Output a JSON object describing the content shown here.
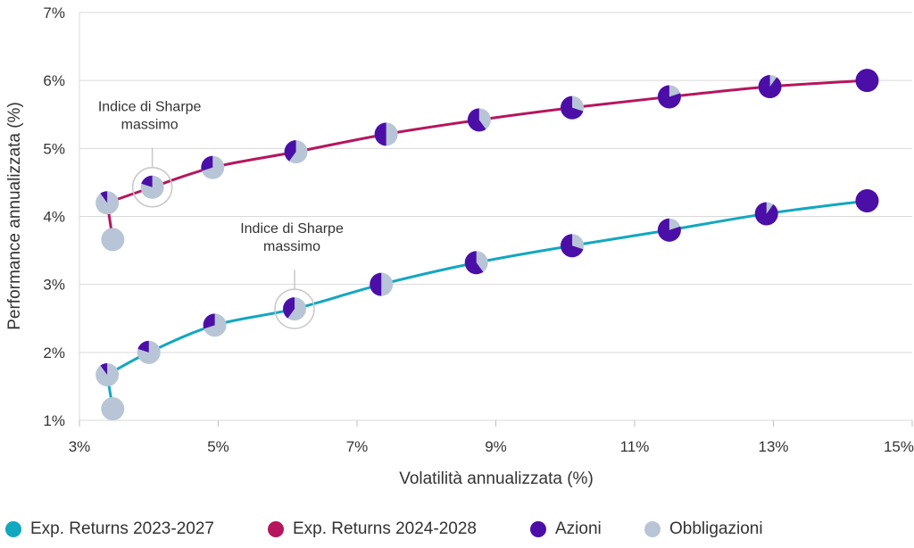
{
  "chart_data": {
    "type": "line",
    "title": "",
    "xlabel": "Volatilità annualizzata (%)",
    "ylabel": "Performance annualizzata (%)",
    "xlim": [
      3,
      15
    ],
    "ylim": [
      1,
      7
    ],
    "x_ticks": [
      "3%",
      "5%",
      "7%",
      "9%",
      "11%",
      "13%",
      "15%"
    ],
    "y_ticks": [
      "1%",
      "2%",
      "3%",
      "4%",
      "5%",
      "6%",
      "7%"
    ],
    "grid": "horizontal",
    "series": [
      {
        "name": "Exp. Returns 2023-2027",
        "color": "#13a7c0",
        "points": [
          {
            "x": 3.48,
            "y": 1.17,
            "equity": 0.0
          },
          {
            "x": 3.4,
            "y": 1.67,
            "equity": 0.1
          },
          {
            "x": 4.0,
            "y": 2.0,
            "equity": 0.2
          },
          {
            "x": 4.95,
            "y": 2.4,
            "equity": 0.3
          },
          {
            "x": 6.1,
            "y": 2.64,
            "equity": 0.4
          },
          {
            "x": 7.35,
            "y": 3.0,
            "equity": 0.5
          },
          {
            "x": 8.72,
            "y": 3.32,
            "equity": 0.6
          },
          {
            "x": 10.1,
            "y": 3.57,
            "equity": 0.7
          },
          {
            "x": 11.5,
            "y": 3.8,
            "equity": 0.8
          },
          {
            "x": 12.9,
            "y": 4.04,
            "equity": 0.9
          },
          {
            "x": 14.35,
            "y": 4.23,
            "equity": 1.0
          }
        ]
      },
      {
        "name": "Exp. Returns 2024-2028",
        "color": "#b5165e",
        "points": [
          {
            "x": 3.48,
            "y": 3.66,
            "equity": 0.0
          },
          {
            "x": 3.4,
            "y": 4.2,
            "equity": 0.1
          },
          {
            "x": 4.05,
            "y": 4.43,
            "equity": 0.2
          },
          {
            "x": 4.92,
            "y": 4.72,
            "equity": 0.3
          },
          {
            "x": 6.12,
            "y": 4.95,
            "equity": 0.4
          },
          {
            "x": 7.42,
            "y": 5.21,
            "equity": 0.5
          },
          {
            "x": 8.76,
            "y": 5.42,
            "equity": 0.6
          },
          {
            "x": 10.1,
            "y": 5.6,
            "equity": 0.7
          },
          {
            "x": 11.5,
            "y": 5.76,
            "equity": 0.8
          },
          {
            "x": 12.95,
            "y": 5.91,
            "equity": 0.9
          },
          {
            "x": 14.35,
            "y": 6.0,
            "equity": 1.0
          }
        ]
      }
    ],
    "pie_legend": [
      {
        "name": "Azioni",
        "color": "#4b0fa8"
      },
      {
        "name": "Obbligazioni",
        "color": "#b8c5d6"
      }
    ],
    "annotations": [
      {
        "lines": [
          "Indice di Sharpe",
          "massimo"
        ],
        "series": 1,
        "point": 2
      },
      {
        "lines": [
          "Indice di Sharpe",
          "massimo"
        ],
        "series": 0,
        "point": 4
      }
    ]
  },
  "legend": [
    {
      "label": "Exp. Returns 2023-2027",
      "color": "#13a7c0"
    },
    {
      "label": "Exp. Returns 2024-2028",
      "color": "#b5165e"
    },
    {
      "label": "Azioni",
      "color": "#4b0fa8"
    },
    {
      "label": "Obbligazioni",
      "color": "#b8c5d6"
    }
  ]
}
